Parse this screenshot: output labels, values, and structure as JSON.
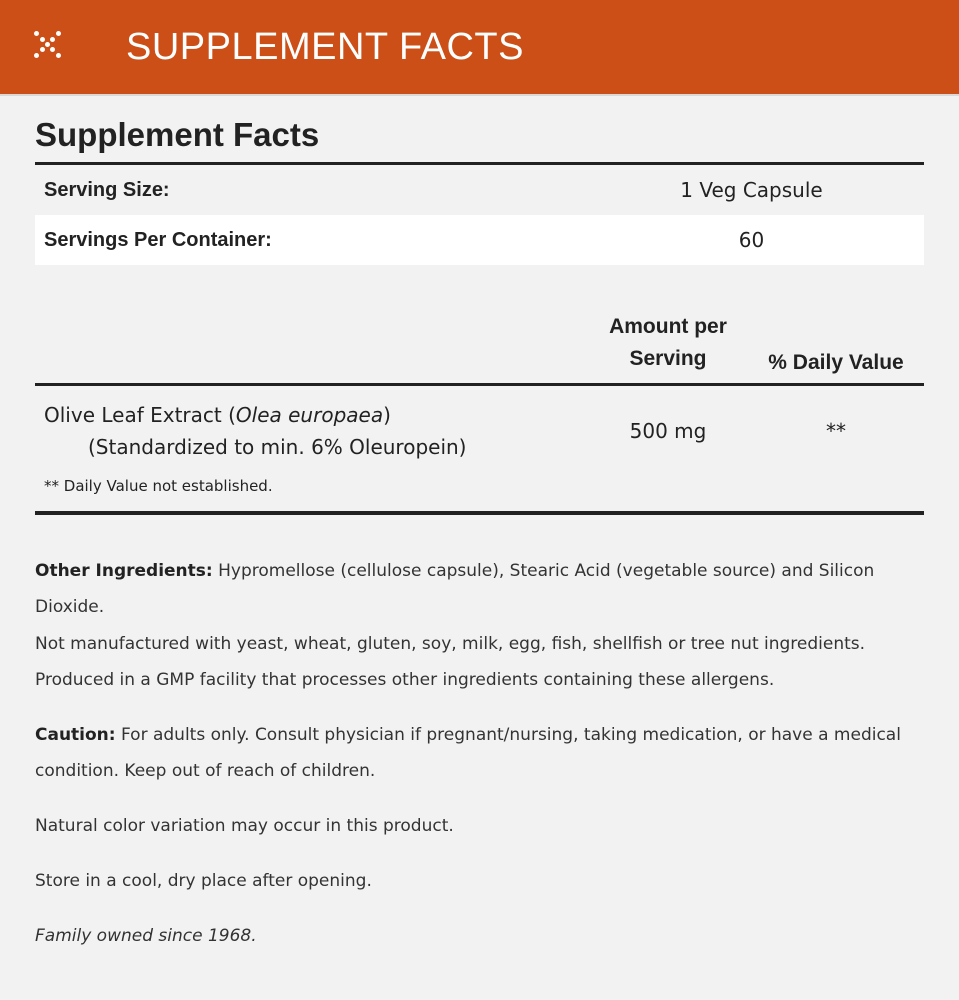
{
  "header": {
    "title": "SUPPLEMENT FACTS",
    "icon": "dots-x-icon",
    "color": "#cb4f16"
  },
  "panel": {
    "title": "Supplement Facts",
    "serving_size": {
      "label": "Serving Size:",
      "value": "1 Veg Capsule"
    },
    "servings_per_container": {
      "label": "Servings Per Container:",
      "value": "60"
    },
    "columns": {
      "amount": "Amount per Serving",
      "daily_value": "% Daily Value"
    },
    "ingredients": [
      {
        "name": "Olive Leaf Extract (",
        "latin": "Olea europaea",
        "close": ")",
        "detail": "(Standardized to min. 6% Oleuropein)",
        "amount": "500 mg",
        "daily_value": "**"
      }
    ],
    "footnote": "** Daily Value not established."
  },
  "info": {
    "other_label": "Other Ingredients:",
    "other_text": " Hypromellose (cellulose capsule), Stearic Acid (vegetable source) and Silicon Dioxide.",
    "allergen": "Not manufactured with yeast, wheat, gluten, soy, milk, egg, fish, shellfish or tree nut ingredients. Produced in a GMP facility that processes other ingredients containing these allergens.",
    "caution_label": "Caution:",
    "caution_text": " For adults only. Consult physician if pregnant/nursing, taking medication, or have a medical condition. Keep out of reach of children.",
    "color_note": "Natural color variation may occur in this product.",
    "storage": "Store in a cool, dry place after opening.",
    "family": "Family owned since 1968."
  }
}
